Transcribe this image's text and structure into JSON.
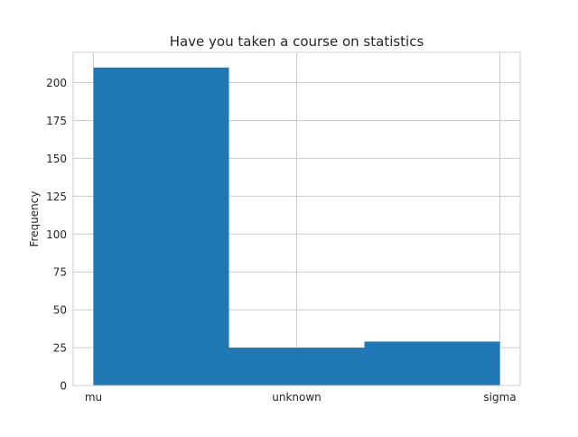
{
  "chart_data": {
    "type": "bar",
    "title": "Have you taken a course on statistics",
    "xlabel": "",
    "ylabel": "Frequency",
    "categories": [
      "mu",
      "unknown",
      "sigma"
    ],
    "bins": [
      {
        "start": 0.0,
        "end": 0.6667,
        "value": 210
      },
      {
        "start": 0.6667,
        "end": 1.3333,
        "value": 25
      },
      {
        "start": 1.3333,
        "end": 2.0,
        "value": 29
      }
    ],
    "x_ticks": [
      {
        "pos": 0,
        "label": "mu"
      },
      {
        "pos": 1,
        "label": "unknown"
      },
      {
        "pos": 2,
        "label": "sigma"
      }
    ],
    "y_ticks": [
      0,
      25,
      50,
      75,
      100,
      125,
      150,
      175,
      200
    ],
    "xlim": [
      -0.1,
      2.1
    ],
    "ylim": [
      0,
      220
    ],
    "grid": true,
    "bar_color": "#1f77b4",
    "grid_color": "#cccccc",
    "spine_color": "#cccccc",
    "text_color": "#262626"
  }
}
